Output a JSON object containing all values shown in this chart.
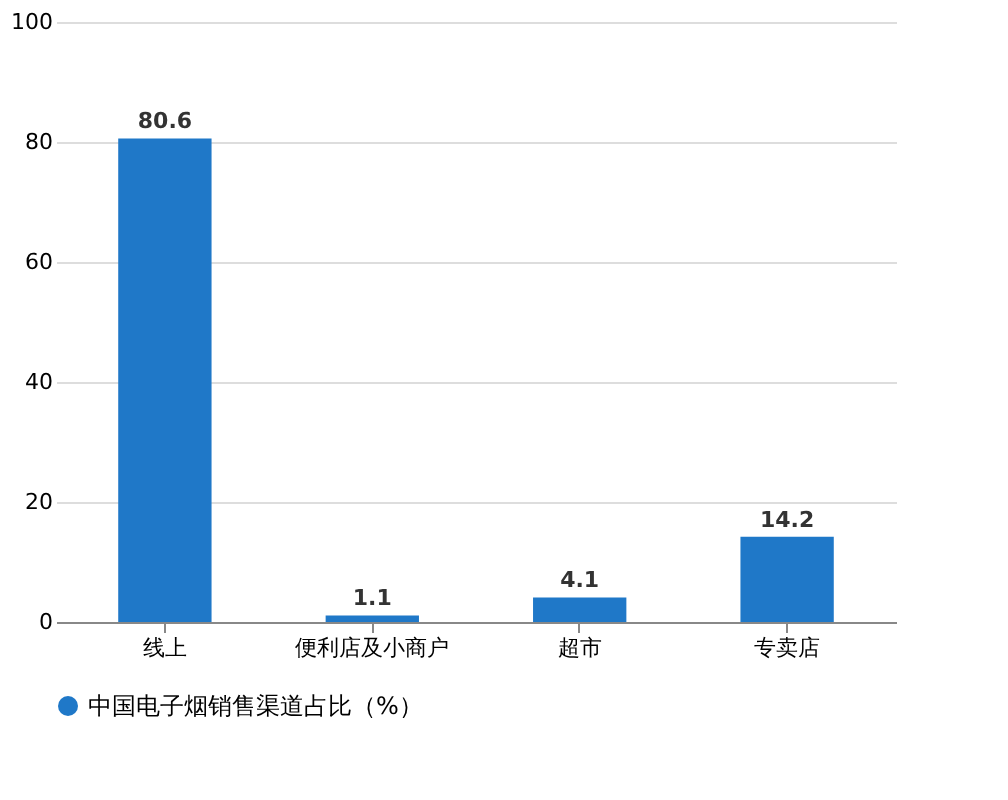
{
  "chart_data": {
    "type": "bar",
    "categories": [
      "线上",
      "便利店及小商户",
      "超市",
      "专卖店"
    ],
    "series": [
      {
        "name": "中国电子烟销售渠道占比（%）",
        "color": "#1f78c8",
        "values": [
          80.6,
          1.1,
          4.1,
          14.2
        ]
      }
    ],
    "ylim": [
      0,
      100
    ],
    "yticks": [
      0,
      20,
      40,
      60,
      80,
      100
    ],
    "grid": "y",
    "legend": "bottom",
    "data_labels": true
  }
}
